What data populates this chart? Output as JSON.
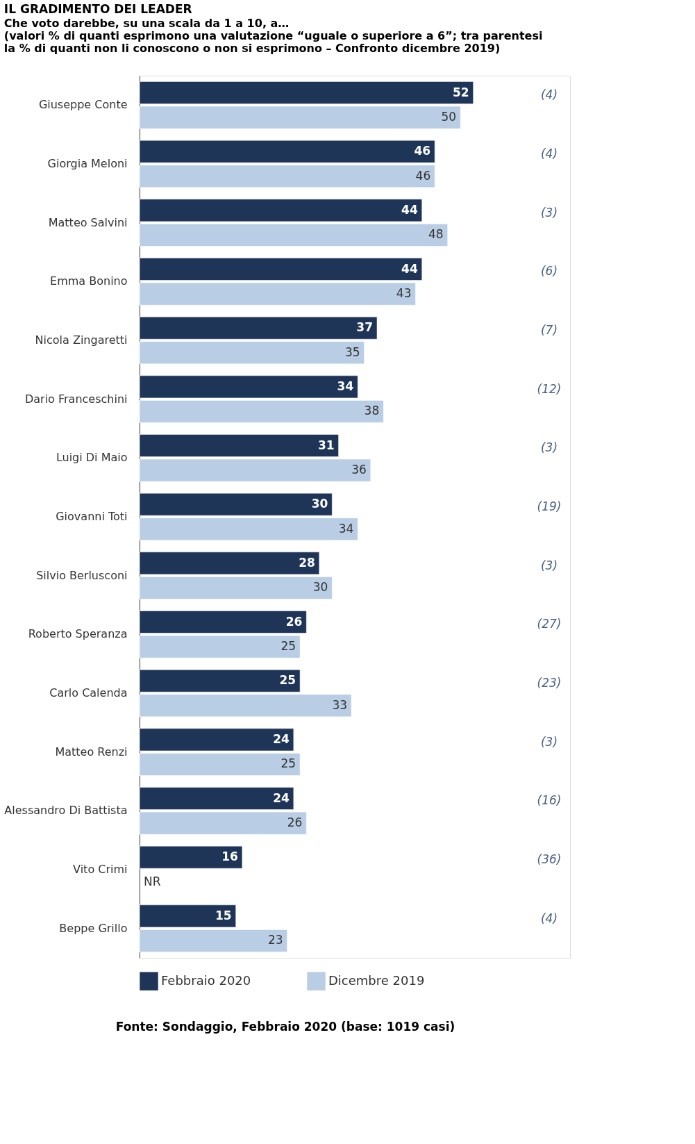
{
  "chart_data": {
    "type": "bar",
    "orientation": "horizontal",
    "title": "IL GRADIMENTO DEI LEADER",
    "subtitle": "Che voto darebbe, su una scala da 1 a 10, a…\n(valori % di quanti esprimono una valutazione “uguale o superiore a 6”; tra parentesi\nla % di quanti non li conoscono o non si esprimono – Confronto dicembre 2019)",
    "categories": [
      "Giuseppe Conte",
      "Giorgia Meloni",
      "Matteo Salvini",
      "Emma Bonino",
      "Nicola Zingaretti",
      "Dario Franceschini",
      "Luigi Di Maio",
      "Giovanni Toti",
      "Silvio Berlusconi",
      "Roberto Speranza",
      "Carlo Calenda",
      "Matteo Renzi",
      "Alessandro Di Battista",
      "Vito Crimi",
      "Beppe Grillo"
    ],
    "series": [
      {
        "name": "Febbraio 2020",
        "color": "#1f3558",
        "values": [
          52,
          46,
          44,
          44,
          37,
          34,
          31,
          30,
          28,
          26,
          25,
          24,
          24,
          16,
          15
        ],
        "value_labels": [
          "52",
          "46",
          "44",
          "44",
          "37",
          "34",
          "31",
          "30",
          "28",
          "26",
          "25",
          "24",
          "24",
          "16",
          "15"
        ]
      },
      {
        "name": "Dicembre 2019",
        "color": "#b9cde5",
        "values": [
          50,
          46,
          48,
          43,
          35,
          38,
          36,
          34,
          30,
          25,
          33,
          25,
          26,
          null,
          23
        ],
        "value_labels": [
          "50",
          "46",
          "48",
          "43",
          "35",
          "38",
          "36",
          "34",
          "30",
          "25",
          "33",
          "25",
          "26",
          "NR",
          "23"
        ]
      }
    ],
    "legend": "bottom left",
    "annotations": [
      "(4)",
      "(4)",
      "(3)",
      "(6)",
      "(7)",
      "(12)",
      "(3)",
      "(19)",
      "(3)",
      "(27)",
      "(23)",
      "(3)",
      "(16)",
      "(36)",
      "(4)",
      "Fonte: Sondaggio, Febbraio 2020 (base: 1019 casi)"
    ]
  }
}
